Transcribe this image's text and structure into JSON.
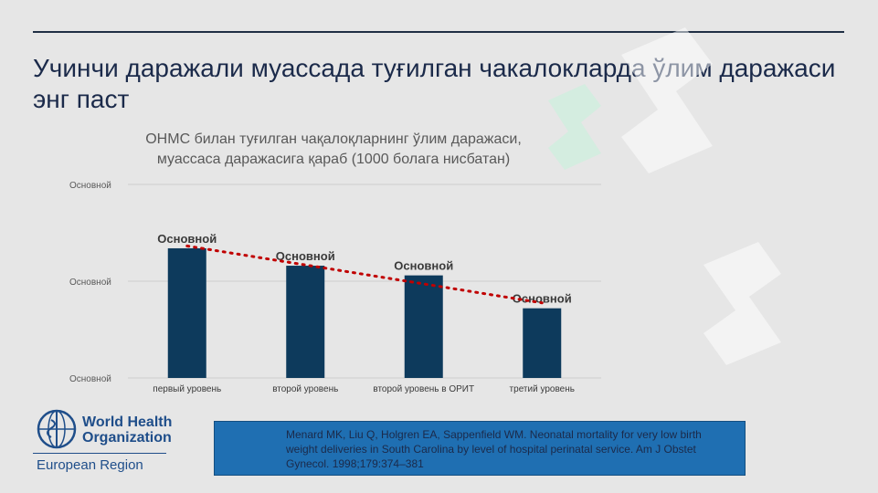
{
  "slide": {
    "title": "Учинчи даражали муассада туғилган чакалокларда ўлим даражаси энг паст"
  },
  "chart_data": {
    "type": "bar",
    "title": "ОНМС билан туғилган чақалоқларнинг ўлим даражаси, муассаса даражасига қараб (1000 болага нисбатан)",
    "categories": [
      "первый уровень",
      "второй уровень",
      "второй уровень в ОРИТ",
      "третий уровень"
    ],
    "values": [
      0.67,
      0.58,
      0.53,
      0.36
    ],
    "data_labels": [
      "Основной",
      "Основной",
      "Основной",
      "Основной"
    ],
    "y_tick_labels": [
      "Основной",
      "Основной",
      "Основной"
    ],
    "ylim": [
      0,
      1
    ],
    "trendline": {
      "style": "dotted",
      "color": "#c00000"
    },
    "bar_color": "#0d3a5c",
    "grid": true
  },
  "logo": {
    "name_line1": "World Health",
    "name_line2": "Organization",
    "region": "European Region"
  },
  "citation": {
    "text": "Menard MK, Liu Q, Holgren EA, Sappenfield WM. Neonatal mortality for very low birth weight deliveries in South Carolina by level of hospital perinatal service. Am J Obstet Gynecol. 1998;179:374–381"
  }
}
